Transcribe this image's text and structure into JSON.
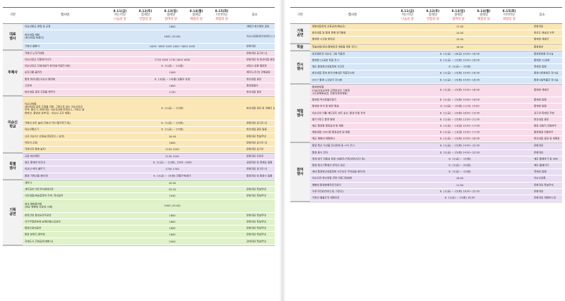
{
  "header": {
    "gubun": "구분",
    "event": "행사명",
    "place": "장소",
    "days": [
      {
        "date": "8.11(금)",
        "sub": "여는마당",
        "tag": "나눔의 날",
        "color": "#e34a4a"
      },
      {
        "date": "8.12(토)",
        "sub": "통해날",
        "tag": "만함의 날",
        "color": "#e34a4a"
      },
      {
        "date": "8.13(일)",
        "sub": "생해날",
        "tag": "참여의 날",
        "color": "#e34a4a"
      },
      {
        "date": "8.14(월)",
        "sub": "생해날",
        "tag": "예중의 날",
        "color": "#e34a4a"
      },
      {
        "date": "8.15(화)",
        "sub": "이어마당",
        "tag": "화합의 날",
        "color": "#e34a4a"
      }
    ]
  },
  "colors": {
    "blue": "#d6e6f7",
    "pink": "#f8dcea",
    "yellow": "#fbe7b5",
    "green": "#dff2c9",
    "purple": "#e8dcf3",
    "gray": "#eeeeee",
    "white": "#ffffff"
  },
  "left_page": [
    {
      "category": "대표\n행사",
      "rows": [
        {
          "name": "이승산왕군 명형 및 군정",
          "time": "1600",
          "place": "세병관-한산해외 광장",
          "color": "blue"
        },
        {
          "name": "한산대첩 재현\n(한산대첩 재현미)",
          "time": "1800\n(10:00)",
          "place": "이순신공원(한산앞바다)\n(선정일 덕등영...낙서)",
          "color": "blue",
          "tall": true
        },
        {
          "name": "거북선 출항식",
          "time": "1400~1600   1400   1400~1600   1400",
          "place": "문화마당",
          "color": "blue"
        }
      ]
    },
    {
      "category": "주제사",
      "rows": [
        {
          "name": "거북선 노젓기대회",
          "time": "",
          "place": "문화마당 공구인 내",
          "color": "pink"
        },
        {
          "name": "이순신장군 진통제가사거",
          "time": "1730   1600   1730   1600   1600",
          "place": "문화마당 및 한산대첩 광장",
          "color": "pink"
        },
        {
          "name": "이순신장군 진영대회기 한국대(어글리식련)",
          "time": "8. 11(금) ~ 13(일)",
          "place": "남망산 공원 철판장",
          "color": "pink"
        },
        {
          "name": "승전고를 울려라",
          "time": "1000",
          "place": "해저드(트리) 잔해광장",
          "color": "pink"
        },
        {
          "name": "통영 한산대첩 이순신 왕래제",
          "time": "8. 13(일) ~ 14(월) 임플우 상영",
          "place": "한산대첩 광장",
          "color": "pink"
        },
        {
          "name": "고유제",
          "time": "1600",
          "place": "통영충렬사",
          "color": "pink"
        },
        {
          "name": "한산대첩 광장 조형물 제막식",
          "time": "1750",
          "place": "한산대첩 광장",
          "color": "pink"
        }
      ]
    },
    {
      "category": "이순신\n학교",
      "rows": [
        {
          "name": "이순신체험\n(한산대첩 광장 조형물 관람, 그림으로 보는 이순신장군\n전적, 활쏘기, 판화자판, 이순신대제 퍼레이스, 거북선 낼\n한복산, 통영성 성벽 등 - 이순신 교자 체험)",
          "time": "8. 11(금) ~ 15(화)",
          "place": "한산대첩 광장\n및 세병관 일\n죽제당 일원",
          "color": "yellow",
          "xtall": true
        },
        {
          "name": "거북선 보트 놀이(거북선 카누/철거루기 등)",
          "time": "8. 11(금) ~ 15(화)",
          "place": "문화마당 공구인 내",
          "color": "yellow"
        },
        {
          "name": "이순신활쏘기",
          "time": "8. 11(금) ~ 15(화)",
          "place": "한산대첩 광장 일원",
          "color": "yellow"
        },
        {
          "name": "나의 이순신! 선생님(퍼포먼스 / 상언)",
          "time": "16:00",
          "place": "문화마당 특설무대",
          "color": "yellow"
        },
        {
          "name": "어린이 군점",
          "time": "1600",
          "place": "문화마당 공구인 내",
          "color": "yellow"
        },
        {
          "name": "거북선과 함께 놀자!",
          "time": "2100   2100",
          "place": "문화마당 공구인",
          "color": "yellow"
        }
      ]
    },
    {
      "category": "특별\n행사",
      "rows": [
        {
          "name": "군중 한산해전",
          "time": "2130   2100",
          "place": "문화마당 트문인",
          "color": "purple"
        },
        {
          "name": "영군 통제영 비즈네",
          "time": "8. 11(금) ~ 15(화), 1500~1800",
          "place": "공영마당 및 죽제당 일원",
          "color": "purple"
        },
        {
          "name": "이순신 제국 별무기",
          "time": "1700   1700",
          "place": "문화마당 공구인 내",
          "color": "purple"
        },
        {
          "name": "통영 거북선을 찾아라!",
          "time": "8. 11(금) ~ 15(화) 전월주제/참가",
          "place": "통영마당 및 통영시 일원",
          "color": "purple"
        }
      ]
    },
    {
      "category": "기획\n공연",
      "rows": [
        {
          "name": "개막식",
          "time": "20:00",
          "place": "",
          "color": "green"
        },
        {
          "name": "개막공연 비트쿠이원데이온",
          "time": "20:20",
          "place": "문화마당 특설무대",
          "color": "green"
        },
        {
          "name": "시민대합/제승첩축하 주제. 뮤대공연",
          "time": "1930",
          "place": "문화마당 특설무대",
          "color": "green"
        },
        {
          "name": "호국 평화음악회\n(해군 해병대 의장대 시범)",
          "time": "1900\n(19:00)",
          "place": "",
          "color": "green",
          "tall": true
        },
        {
          "name": "  한목관련 통영승전무공연",
          "time": "1800",
          "place": "문화마당 특설무대",
          "color": "green"
        },
        {
          "name": "국가무형문화재  남해안별신굿공연",
          "time": "1800",
          "place": "문화마당 특설무대",
          "color": "green"
        },
        {
          "name": "  통영오광대공연",
          "time": "1800",
          "place": "문화마당 특설무대",
          "color": "green"
        },
        {
          "name": "통영 방위리 음악회",
          "time": "1800",
          "place": "문화마당 특설무대",
          "color": "green"
        },
        {
          "name": "자재도사 조청곱연(제한사)",
          "time": "2000",
          "place": "강태마당 특설무대",
          "color": "green"
        }
      ]
    }
  ],
  "right_page": [
    {
      "category": "기획\n공연",
      "rows": [
        {
          "name": "명량대첩축제 교류공연(해남군)",
          "time": "17:00",
          "place": "문화마당",
          "color": "yellow"
        },
        {
          "name": "한산대첩 및 통영 명예 영기병회",
          "time": "14:00",
          "place": "한산도 제승당 수루",
          "color": "yellow"
        },
        {
          "name": "통제영 시조창 한마당",
          "time": "15:00",
          "place": "통제영 세병관",
          "color": "yellow"
        }
      ]
    },
    {
      "category": "학술",
      "rows": [
        {
          "name": "학술대회(한산/통제영과 재현을 위한 연구)",
          "time": "16:00",
          "place": "통영청년",
          "color": "yellow"
        }
      ]
    },
    {
      "category": "전시\n행사",
      "rows": [
        {
          "name": "임진왜란과 이순신 그림 작품전",
          "time": "8. 11(금) ~ 18(금) 10:00~18:00",
          "place": "통영문화원 전시실",
          "color": "blue"
        },
        {
          "name": "통제영 12공방 작품 전시",
          "time": "8. 11(금) ~ 15(화) 10:00~18:00",
          "place": "통제영 12공방",
          "color": "blue"
        },
        {
          "name": "해군 통영한산대첩축제 사진전",
          "time": "8. 11(금) ~ 15(화)",
          "place": "죽제당 일원",
          "color": "blue"
        },
        {
          "name": "한산대첩 축하 한국서예대전 작품전시회",
          "time": "8. 11(금) ~ 15(화) 10:00~18:00",
          "place": "통영시문화회관 전시실",
          "color": "blue"
        },
        {
          "name": "2017 통영 느린엽기 전시회",
          "time": "8. 11(금) ~ 15(화) 10:00~18:00",
          "place": "통영시립박물관 전시실",
          "color": "blue"
        }
      ]
    },
    {
      "category": "체험\n행사",
      "rows": [
        {
          "name": "통제영체험\n(이순신장군야복 군역본보인 기제정\n 시조창해원공업, 전통차문화체험)",
          "time": "8. 11(금) ~ 15(화) 10:00~18:00",
          "place": "통제영 세병관",
          "color": "pink",
          "tall": true
        },
        {
          "name": "통제영 역사문물관찰기",
          "time": "8. 11(금) ~ 15(화) 10:00~18:00",
          "place": "통제영 일원",
          "color": "pink"
        },
        {
          "name": "통제영 비석 및 현판 해설",
          "time": "8. 11(금) ~ 15(화) 11:00, 15:00",
          "place": "통제영 일원",
          "color": "pink"
        },
        {
          "name": "이순신의 어톨 재다로트 보트 승선, 통영 이랑 투어",
          "time": "8. 11(금) ~ 15(화) 18:00~19:00",
          "place": "강구안·죽제당 주변",
          "color": "pink"
        },
        {
          "name": "펼기구피고 통영 항탐",
          "time": "8. 11(금) ~ 15(화) 13:00~21:00",
          "place": "한산대첩 광장",
          "color": "pink"
        },
        {
          "name": "해군 통영함 함정공개 및 체험",
          "time": "8. 11(금) ~ 13(일) 10:00~17:00",
          "place": "통영 강화지 전용부두",
          "color": "pink"
        },
        {
          "name": "해양경찰 1001함 함정공개 및 체험",
          "time": "8. 11(금) ~ 13(일) 10:00~17:00",
          "place": "통영해경 전용부두",
          "color": "pink"
        },
        {
          "name": "해군 해병대 체험행사",
          "time": "8. 11(금) ~ 15(화) 10:00~18:00",
          "place": "한산대첩 광장 및 체험장",
          "color": "pink"
        }
      ]
    },
    {
      "category": "참여\n행사",
      "rows": [
        {
          "name": "통영 특산 수산물 전시판매 및 시식 코너",
          "time": "8. 11(금) ~ 15(화) 14:00~22:00",
          "place": "문화마당",
          "color": "purple"
        },
        {
          "name": "통영 음식 전자",
          "time": "8. 11(금) ~ 15(화) 14:00~22:00",
          "place": "문화마당",
          "color": "purple"
        },
        {
          "name": "축제 참가 전통상 운영 (바른트/가족/연인/친구 등)",
          "time": "8. 11(금) ~ 15(화)",
          "place": "재단 통해하기 및 SNS",
          "color": "purple"
        },
        {
          "name": "통영 혹시기록에서 온라인 공모",
          "time": "8. 11(금) ~ 20(일)",
          "place": "재단 홈페이지",
          "color": "purple"
        },
        {
          "name": "제대 통영한산대첩축제 사진속의 주연공을 찾아라!",
          "time": "8. 11(금) ~ 15(화)",
          "place": "죽제당 일원",
          "color": "purple"
        },
        {
          "name": "이순신과 한산대첩 관련 아동그림대회",
          "time": "16:00",
          "place": "이순신공원",
          "color": "purple"
        },
        {
          "name": "해병대 통영현해직민기념식",
          "time": "11:00",
          "place": "문화마당 특설무대",
          "color": "purple"
        },
        {
          "name": "자유거리공연(버스킹, 어르신)",
          "time": "8. 11(금) ~ 15(화) 18:00~22:00",
          "place": "문화마당",
          "color": "purple"
        },
        {
          "name": "거북선 맬을조직 체험프로",
          "time": "8. 11(금) ~ 15(화) 16:00",
          "place": "문화마당 체험부스장",
          "color": "purple"
        }
      ]
    }
  ]
}
